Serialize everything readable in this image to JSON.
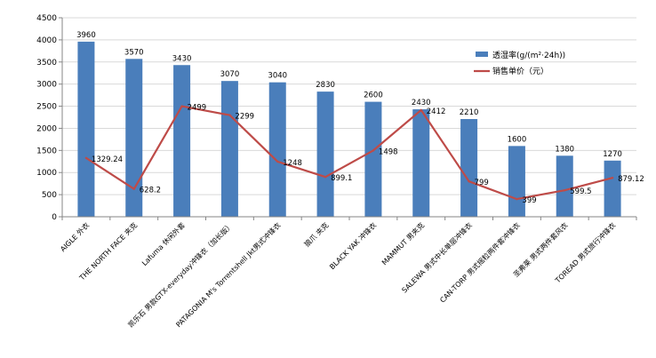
{
  "chart_data": {
    "type": "bar",
    "categories": [
      "AIGLE 外衣",
      "THE NORTH FACE 夹克",
      "Lafuma 休闲外套",
      "凯乐石 男款GTX-everyday冲锋衣（加长版）",
      "PATAGONIA M's Torrentshell Jkt男式冲锋衣",
      "狼爪 夹克",
      "BLACK YAK 冲锋衣",
      "MAMMUT 男夹克",
      "SALEWA 男式中长单层冲锋衣",
      "CAN-TORP 男式摇粒两件套冲锋衣",
      "圣弗莱 男式两件套风衣",
      "TOREAD 男式旅行冲锋衣"
    ],
    "series": [
      {
        "name": "透湿率(g/(m²·24h))",
        "type": "bar",
        "values": [
          3960,
          3570,
          3430,
          3070,
          3040,
          2830,
          2600,
          2430,
          2210,
          1600,
          1380,
          1270
        ],
        "labels": [
          "3960",
          "3570",
          "3430",
          "3070",
          "3040",
          "2830",
          "2600",
          "2430",
          "2210",
          "1600",
          "1380",
          "1270"
        ]
      },
      {
        "name": "销售单价（元）",
        "type": "line",
        "values": [
          1329.24,
          628.2,
          2499,
          2299,
          1248,
          899.1,
          1498,
          2412,
          799,
          399,
          599.5,
          879.12
        ],
        "labels": [
          "1329.24",
          "628.2",
          "2499",
          "2299",
          "1248",
          "899.1",
          "1498",
          "2412",
          "799",
          "399",
          "599.5",
          "879.12"
        ]
      }
    ],
    "y_ticks": [
      "0",
      "500",
      "1000",
      "1500",
      "2000",
      "2500",
      "3000",
      "3500",
      "4000",
      "4500"
    ],
    "ylim": [
      0,
      4500
    ],
    "grid": true,
    "legend_position": "top-right",
    "colors": {
      "bar": "#4a7ebb",
      "line": "#be4b48",
      "grid": "#d9d9d9",
      "axis": "#868686"
    }
  }
}
